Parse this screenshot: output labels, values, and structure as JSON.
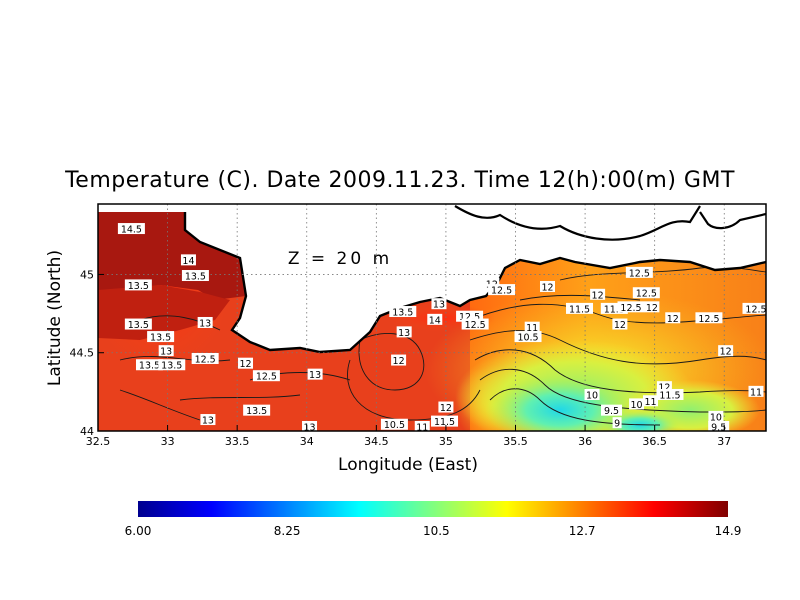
{
  "chart_data": {
    "type": "heatmap",
    "title": "Temperature (C). Date 2009.11.23. Time 12(h):00(m) GMT",
    "annotation": "Z = 20 m",
    "xlabel": "Longitude (East)",
    "ylabel": "Latitude (North)",
    "xlim": [
      32.5,
      37.3
    ],
    "ylim": [
      44.0,
      45.45
    ],
    "x_ticks": [
      "32.5",
      "33",
      "33.5",
      "34",
      "34.5",
      "35",
      "35.5",
      "36",
      "36.5",
      "37"
    ],
    "x_tick_values": [
      32.5,
      33,
      33.5,
      34,
      34.5,
      35,
      35.5,
      36,
      36.5,
      37
    ],
    "y_ticks": [
      "44",
      "44.5",
      "45"
    ],
    "y_tick_values": [
      44,
      44.5,
      45
    ],
    "grid": true,
    "colorbar": {
      "min": 6.0,
      "max": 14.9,
      "tick_labels": [
        "6.00",
        "8.25",
        "10.5",
        "12.7",
        "14.9"
      ],
      "tick_values": [
        6.0,
        8.25,
        10.5,
        12.7,
        14.9
      ],
      "colors": [
        "#00008f",
        "#0000ff",
        "#0080ff",
        "#00ffff",
        "#80ff80",
        "#ffff00",
        "#ff8000",
        "#ff0000",
        "#800000"
      ]
    },
    "contour_labels": [
      {
        "text": "14.5",
        "lon": 32.74,
        "lat": 45.29
      },
      {
        "text": "14",
        "lon": 33.15,
        "lat": 45.09
      },
      {
        "text": "13.5",
        "lon": 33.2,
        "lat": 44.99
      },
      {
        "text": "13.5",
        "lon": 32.79,
        "lat": 44.93
      },
      {
        "text": "13.5",
        "lon": 32.79,
        "lat": 44.68
      },
      {
        "text": "13.5",
        "lon": 32.95,
        "lat": 44.6
      },
      {
        "text": "13",
        "lon": 33.27,
        "lat": 44.69
      },
      {
        "text": "13",
        "lon": 32.99,
        "lat": 44.51
      },
      {
        "text": "13.5",
        "lon": 32.87,
        "lat": 44.42
      },
      {
        "text": "13.5",
        "lon": 33.03,
        "lat": 44.42
      },
      {
        "text": "12.5",
        "lon": 33.27,
        "lat": 44.46
      },
      {
        "text": "12",
        "lon": 33.56,
        "lat": 44.43
      },
      {
        "text": "12.5",
        "lon": 33.71,
        "lat": 44.35
      },
      {
        "text": "13",
        "lon": 34.06,
        "lat": 44.36
      },
      {
        "text": "13.5",
        "lon": 33.64,
        "lat": 44.13
      },
      {
        "text": "13",
        "lon": 33.29,
        "lat": 44.07
      },
      {
        "text": "13",
        "lon": 34.02,
        "lat": 44.01
      },
      {
        "text": "13.5",
        "lon": 34.69,
        "lat": 44.76
      },
      {
        "text": "14",
        "lon": 34.92,
        "lat": 44.71
      },
      {
        "text": "13",
        "lon": 34.95,
        "lat": 44.81
      },
      {
        "text": "12.5",
        "lon": 35.17,
        "lat": 44.73
      },
      {
        "text": "12.5",
        "lon": 35.21,
        "lat": 44.68
      },
      {
        "text": "13",
        "lon": 34.7,
        "lat": 44.63
      },
      {
        "text": "12",
        "lon": 34.66,
        "lat": 44.45
      },
      {
        "text": "10.5",
        "lon": 34.63,
        "lat": 44.04
      },
      {
        "text": "11",
        "lon": 34.83,
        "lat": 44.02
      },
      {
        "text": "11.5",
        "lon": 34.99,
        "lat": 44.06
      },
      {
        "text": "12",
        "lon": 35.0,
        "lat": 44.15
      },
      {
        "text": "12",
        "lon": 35.33,
        "lat": 44.94
      },
      {
        "text": "12.5",
        "lon": 35.4,
        "lat": 44.9
      },
      {
        "text": "12",
        "lon": 35.73,
        "lat": 44.92
      },
      {
        "text": "11",
        "lon": 35.62,
        "lat": 44.66
      },
      {
        "text": "10.5",
        "lon": 35.59,
        "lat": 44.6
      },
      {
        "text": "12",
        "lon": 36.09,
        "lat": 44.87
      },
      {
        "text": "11.5",
        "lon": 35.96,
        "lat": 44.78
      },
      {
        "text": "11.5",
        "lon": 36.21,
        "lat": 44.78
      },
      {
        "text": "12.5",
        "lon": 36.33,
        "lat": 44.79
      },
      {
        "text": "12",
        "lon": 36.48,
        "lat": 44.79
      },
      {
        "text": "12.5",
        "lon": 36.44,
        "lat": 44.88
      },
      {
        "text": "12.5",
        "lon": 36.39,
        "lat": 45.01
      },
      {
        "text": "12",
        "lon": 36.25,
        "lat": 44.68
      },
      {
        "text": "12",
        "lon": 36.63,
        "lat": 44.72
      },
      {
        "text": "12.5",
        "lon": 36.89,
        "lat": 44.72
      },
      {
        "text": "12.5",
        "lon": 37.25,
        "lat": 44.78
      },
      {
        "text": "12",
        "lon": 37.01,
        "lat": 44.51
      },
      {
        "text": "12",
        "lon": 36.57,
        "lat": 44.28
      },
      {
        "text": "11.5",
        "lon": 36.61,
        "lat": 44.23
      },
      {
        "text": "10",
        "lon": 36.05,
        "lat": 44.23
      },
      {
        "text": "9.5",
        "lon": 36.19,
        "lat": 44.13
      },
      {
        "text": "10",
        "lon": 36.37,
        "lat": 44.17
      },
      {
        "text": "11",
        "lon": 36.47,
        "lat": 44.19
      },
      {
        "text": "9",
        "lon": 36.23,
        "lat": 44.05
      },
      {
        "text": "10",
        "lon": 36.94,
        "lat": 44.09
      },
      {
        "text": "9.5",
        "lon": 36.96,
        "lat": 44.0
      },
      {
        "text": "11",
        "lon": 37.26,
        "lat": 44.25
      }
    ]
  }
}
